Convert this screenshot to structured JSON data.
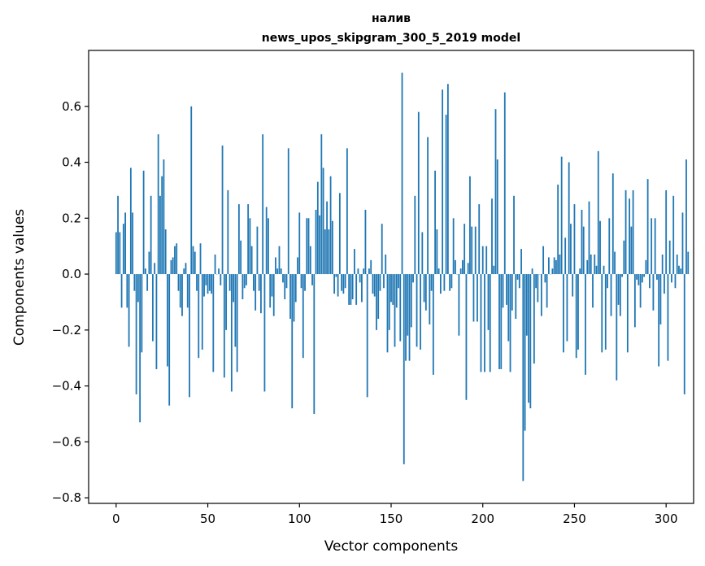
{
  "chart_data": {
    "type": "bar",
    "title": [
      "налив",
      "news_upos_skipgram_300_5_2019 model"
    ],
    "xlabel": "Vector components",
    "ylabel": "Components values",
    "xlim": [
      -15,
      315
    ],
    "ylim": [
      -0.82,
      0.8
    ],
    "x_ticks": [
      0,
      50,
      100,
      150,
      200,
      250,
      300
    ],
    "x_tick_labels": [
      "0",
      "50",
      "100",
      "150",
      "200",
      "250",
      "300"
    ],
    "y_ticks": [
      -0.8,
      -0.6,
      -0.4,
      -0.2,
      0.0,
      0.2,
      0.4,
      0.6
    ],
    "y_tick_labels": [
      "−0.8",
      "−0.6",
      "−0.4",
      "−0.2",
      "0.0",
      "0.2",
      "0.4",
      "0.6"
    ],
    "bar_color": "#1f77b4",
    "values": [
      0.15,
      0.28,
      0.15,
      -0.12,
      0.18,
      0.22,
      -0.12,
      -0.26,
      0.38,
      0.22,
      -0.06,
      -0.43,
      -0.1,
      -0.53,
      -0.28,
      0.37,
      0.02,
      -0.06,
      0.08,
      0.28,
      -0.24,
      0.04,
      -0.34,
      0.5,
      0.28,
      0.35,
      0.41,
      0.16,
      -0.33,
      -0.47,
      0.05,
      0.06,
      0.1,
      0.11,
      -0.06,
      -0.12,
      -0.15,
      0.02,
      0.04,
      -0.12,
      -0.44,
      0.6,
      0.1,
      0.08,
      -0.06,
      -0.3,
      0.11,
      -0.27,
      -0.08,
      -0.04,
      -0.07,
      -0.06,
      -0.07,
      -0.35,
      0.07,
      0.0,
      0.02,
      -0.04,
      0.46,
      -0.37,
      -0.2,
      0.3,
      -0.06,
      -0.42,
      -0.1,
      -0.26,
      -0.35,
      0.25,
      0.12,
      -0.09,
      -0.05,
      -0.04,
      0.25,
      0.2,
      0.1,
      -0.06,
      -0.13,
      0.17,
      -0.06,
      -0.14,
      0.5,
      -0.42,
      0.24,
      0.2,
      -0.12,
      -0.08,
      -0.15,
      0.06,
      0.02,
      0.1,
      0.02,
      -0.03,
      -0.09,
      -0.05,
      0.45,
      -0.16,
      -0.48,
      -0.17,
      -0.1,
      0.06,
      0.22,
      -0.05,
      -0.3,
      -0.06,
      0.2,
      0.2,
      0.1,
      -0.04,
      -0.5,
      0.23,
      0.33,
      0.21,
      0.5,
      0.38,
      0.16,
      0.26,
      0.16,
      0.35,
      0.19,
      -0.07,
      -0.01,
      -0.08,
      0.29,
      -0.06,
      -0.07,
      -0.05,
      0.45,
      -0.11,
      -0.11,
      -0.09,
      0.09,
      -0.11,
      0.02,
      -0.03,
      -0.1,
      0.02,
      0.23,
      -0.44,
      0.02,
      0.05,
      -0.07,
      -0.08,
      -0.2,
      -0.16,
      -0.06,
      0.18,
      -0.05,
      0.07,
      -0.28,
      -0.2,
      -0.1,
      -0.11,
      -0.26,
      -0.12,
      -0.05,
      -0.24,
      0.72,
      -0.68,
      -0.31,
      -0.22,
      -0.31,
      -0.19,
      -0.03,
      0.28,
      -0.26,
      0.58,
      -0.27,
      0.15,
      -0.1,
      -0.13,
      0.49,
      -0.18,
      -0.06,
      -0.36,
      0.37,
      0.16,
      0.02,
      -0.07,
      0.66,
      -0.06,
      0.57,
      0.68,
      -0.06,
      -0.05,
      0.2,
      0.05,
      0.0,
      -0.22,
      0.02,
      0.05,
      0.18,
      -0.45,
      0.04,
      0.35,
      0.17,
      -0.17,
      0.17,
      -0.17,
      0.25,
      -0.35,
      0.1,
      -0.35,
      0.1,
      -0.2,
      -0.35,
      0.27,
      0.03,
      0.59,
      0.41,
      -0.34,
      -0.34,
      -0.12,
      0.65,
      -0.11,
      -0.24,
      -0.35,
      -0.13,
      0.28,
      -0.16,
      -0.02,
      -0.05,
      0.09,
      -0.74,
      -0.56,
      -0.22,
      -0.46,
      -0.48,
      0.02,
      -0.32,
      -0.05,
      -0.1,
      0.0,
      -0.15,
      0.1,
      -0.03,
      -0.12,
      0.06,
      0.0,
      0.02,
      0.06,
      0.05,
      0.32,
      0.07,
      0.42,
      -0.28,
      0.13,
      -0.24,
      0.4,
      0.18,
      -0.08,
      0.25,
      -0.3,
      -0.27,
      0.02,
      0.23,
      0.17,
      -0.36,
      0.05,
      0.26,
      0.07,
      -0.12,
      0.07,
      0.03,
      0.44,
      0.19,
      -0.28,
      0.03,
      -0.27,
      -0.05,
      0.2,
      -0.15,
      0.36,
      0.08,
      -0.38,
      -0.11,
      -0.15,
      -0.01,
      0.12,
      0.3,
      -0.28,
      0.27,
      0.17,
      0.3,
      -0.19,
      -0.02,
      -0.04,
      -0.12,
      -0.03,
      -0.01,
      0.05,
      0.34,
      -0.05,
      0.2,
      -0.13,
      0.2,
      -0.02,
      -0.33,
      -0.18,
      0.07,
      -0.07,
      0.3,
      -0.31,
      0.12,
      -0.03,
      0.28,
      -0.05,
      0.07,
      0.03,
      0.02,
      0.22,
      -0.43,
      0.41,
      0.08
    ]
  }
}
